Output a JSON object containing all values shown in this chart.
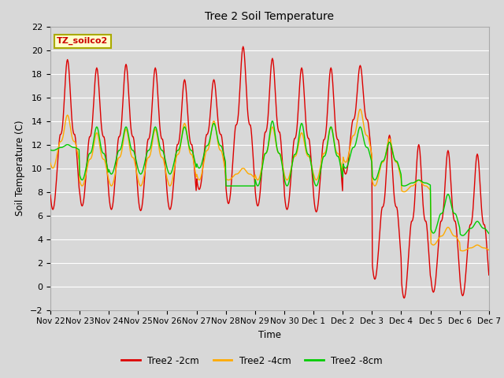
{
  "title": "Tree 2 Soil Temperature",
  "ylabel": "Soil Temperature (C)",
  "xlabel": "Time",
  "annotation": "TZ_soilco2",
  "ylim": [
    -2,
    22
  ],
  "yticks": [
    -2,
    0,
    2,
    4,
    6,
    8,
    10,
    12,
    14,
    16,
    18,
    20,
    22
  ],
  "xtick_labels": [
    "Nov 22",
    "Nov 23",
    "Nov 24",
    "Nov 25",
    "Nov 26",
    "Nov 27",
    "Nov 28",
    "Nov 29",
    "Nov 30",
    "Dec 1",
    "Dec 2",
    "Dec 3",
    "Dec 4",
    "Dec 5",
    "Dec 6",
    "Dec 7"
  ],
  "bg_color": "#d8d8d8",
  "plot_bg_color": "#d8d8d8",
  "grid_color": "#ffffff",
  "line_colors": {
    "2cm": "#dd0000",
    "4cm": "#ffaa00",
    "8cm": "#00cc00"
  },
  "legend_labels": [
    "Tree2 -2cm",
    "Tree2 -4cm",
    "Tree2 -8cm"
  ],
  "n_days": 15,
  "pts_per_day": 48,
  "peaks_2cm": [
    19.2,
    18.5,
    18.8,
    18.5,
    17.5,
    17.5,
    20.3,
    19.3,
    18.5,
    18.5,
    18.7,
    12.8,
    12.0,
    11.5,
    11.2
  ],
  "mins_2cm": [
    6.5,
    6.8,
    6.5,
    6.4,
    6.5,
    8.2,
    7.0,
    6.8,
    6.5,
    6.3,
    9.5,
    0.6,
    -1.0,
    -0.5,
    -0.8
  ],
  "peaks_4cm": [
    14.5,
    13.0,
    13.3,
    13.3,
    13.8,
    14.0,
    10.0,
    13.5,
    13.0,
    13.5,
    15.0,
    12.5,
    9.0,
    5.0,
    3.5
  ],
  "mins_4cm": [
    10.0,
    8.5,
    8.5,
    8.5,
    8.5,
    9.0,
    9.0,
    9.0,
    9.0,
    9.0,
    10.5,
    8.5,
    8.0,
    3.5,
    3.0
  ],
  "peaks_8cm": [
    12.0,
    13.5,
    13.5,
    13.5,
    13.5,
    13.8,
    8.5,
    14.0,
    13.8,
    13.5,
    13.5,
    12.2,
    9.0,
    7.8,
    5.5
  ],
  "mins_8cm": [
    11.5,
    9.0,
    9.5,
    9.5,
    9.5,
    10.0,
    8.5,
    8.5,
    8.5,
    8.5,
    10.0,
    9.0,
    8.5,
    4.5,
    4.3
  ],
  "peak_hour": 14,
  "sharpness": 3.0
}
